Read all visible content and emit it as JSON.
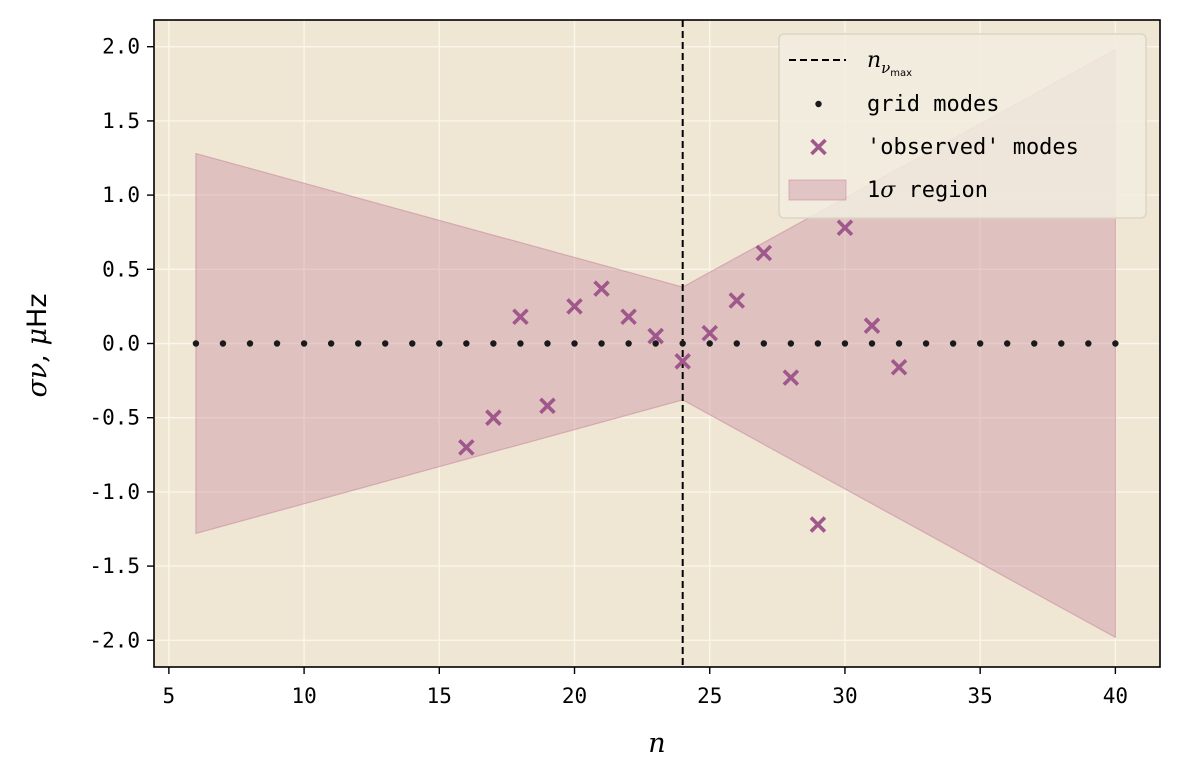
{
  "chart_data": {
    "type": "scatter",
    "xlabel": "n",
    "ylabel": {
      "symbol": "σν",
      "sep": ",  ",
      "mu": "μ",
      "unit": "Hz"
    },
    "xlim": [
      4.45,
      41.65
    ],
    "ylim": [
      -2.18,
      2.18
    ],
    "xticks": [
      "5",
      "10",
      "15",
      "20",
      "25",
      "30",
      "35",
      "40"
    ],
    "xtick_values": [
      5,
      10,
      15,
      20,
      25,
      30,
      35,
      40
    ],
    "yticks": [
      "2.0",
      "1.5",
      "1.0",
      "0.5",
      "0.0",
      "-0.5",
      "-1.0",
      "-1.5",
      "-2.0"
    ],
    "ytick_values": [
      2.0,
      1.5,
      1.0,
      0.5,
      0.0,
      -0.5,
      -1.0,
      -1.5,
      -2.0
    ],
    "grid": true,
    "background": "#efe7d4",
    "grid_color": "#fbf6ea",
    "nu_max_line": {
      "x": 24,
      "style": "dashed",
      "color": "#000000"
    },
    "grid_modes": {
      "x": [
        6,
        7,
        8,
        9,
        10,
        11,
        12,
        13,
        14,
        15,
        16,
        17,
        18,
        19,
        20,
        21,
        22,
        23,
        24,
        25,
        26,
        27,
        28,
        29,
        30,
        31,
        32,
        33,
        34,
        35,
        36,
        37,
        38,
        39,
        40
      ],
      "y": [
        0,
        0,
        0,
        0,
        0,
        0,
        0,
        0,
        0,
        0,
        0,
        0,
        0,
        0,
        0,
        0,
        0,
        0,
        0,
        0,
        0,
        0,
        0,
        0,
        0,
        0,
        0,
        0,
        0,
        0,
        0,
        0,
        0,
        0,
        0
      ],
      "color": "#1a1a1a"
    },
    "observed_modes": {
      "x": [
        16,
        17,
        18,
        19,
        20,
        21,
        22,
        23,
        24,
        25,
        26,
        27,
        28,
        29,
        30,
        31,
        32
      ],
      "y": [
        -0.7,
        -0.5,
        0.18,
        -0.42,
        0.25,
        0.37,
        0.18,
        0.05,
        -0.12,
        0.07,
        0.29,
        0.61,
        -0.23,
        -1.22,
        0.78,
        0.12,
        -0.16
      ],
      "color": "#a0588c"
    },
    "sigma_region": {
      "x": [
        6,
        24,
        40
      ],
      "upper": [
        1.28,
        0.38,
        1.98
      ],
      "lower": [
        -1.28,
        -0.38,
        -1.98
      ],
      "color": "#c98ca0"
    },
    "legend": {
      "placement": "top-right",
      "items": [
        {
          "kind": "line",
          "label_math": "n",
          "label_sub": "ν",
          "label_subsub": "max"
        },
        {
          "kind": "dot",
          "label": "grid modes"
        },
        {
          "kind": "cross",
          "label": "'observed' modes"
        },
        {
          "kind": "patch",
          "label_num": "1",
          "label_math": "σ",
          "label": " region"
        }
      ]
    }
  }
}
